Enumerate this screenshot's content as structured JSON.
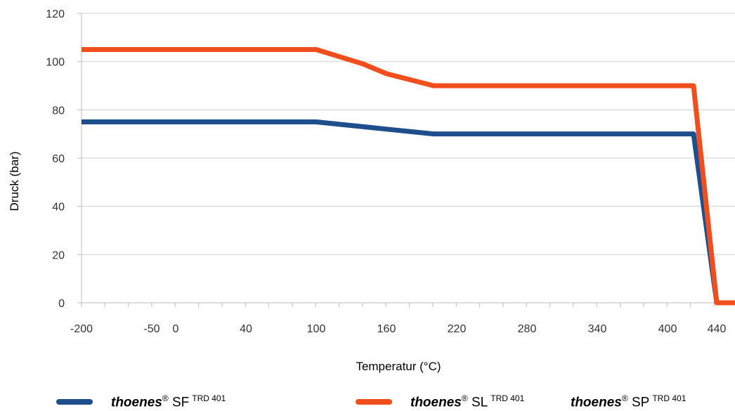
{
  "chart_data": {
    "type": "line",
    "xlabel": "Temperatur (°C)",
    "ylabel": "Druck (bar)",
    "x_tick_labels": [
      "-200",
      "-50",
      "0",
      "40",
      "100",
      "160",
      "220",
      "280",
      "340",
      "400",
      "440"
    ],
    "y_ticks": [
      0,
      20,
      40,
      60,
      80,
      100,
      120
    ],
    "ylim": [
      0,
      120
    ],
    "grid": "horizontal",
    "legend_position": "bottom",
    "series": [
      {
        "name_brand": "thoenes",
        "name_reg": "®",
        "name_model": "SF",
        "name_sup": "TRD 401",
        "color": "#1f4e8c",
        "points": [
          [
            "-200",
            75
          ],
          [
            "100",
            75
          ],
          [
            "140",
            73
          ],
          [
            "160",
            72
          ],
          [
            "200",
            70
          ],
          [
            "400",
            70
          ],
          [
            "420",
            70
          ],
          [
            "440",
            0
          ]
        ]
      },
      {
        "name_brand": "thoenes",
        "name_reg": "®",
        "name_model": "SL",
        "name_sup": "TRD 401",
        "color": "#f04e1c",
        "points": [
          [
            "-200",
            105
          ],
          [
            "100",
            105
          ],
          [
            "140",
            99
          ],
          [
            "160",
            95
          ],
          [
            "200",
            90
          ],
          [
            "400",
            90
          ],
          [
            "420",
            90
          ],
          [
            "440",
            0
          ],
          [
            "460",
            0
          ]
        ]
      }
    ],
    "extra_legend": {
      "name_brand": "thoenes",
      "name_reg": "®",
      "name_model": "SP",
      "name_sup": "TRD 401"
    }
  }
}
